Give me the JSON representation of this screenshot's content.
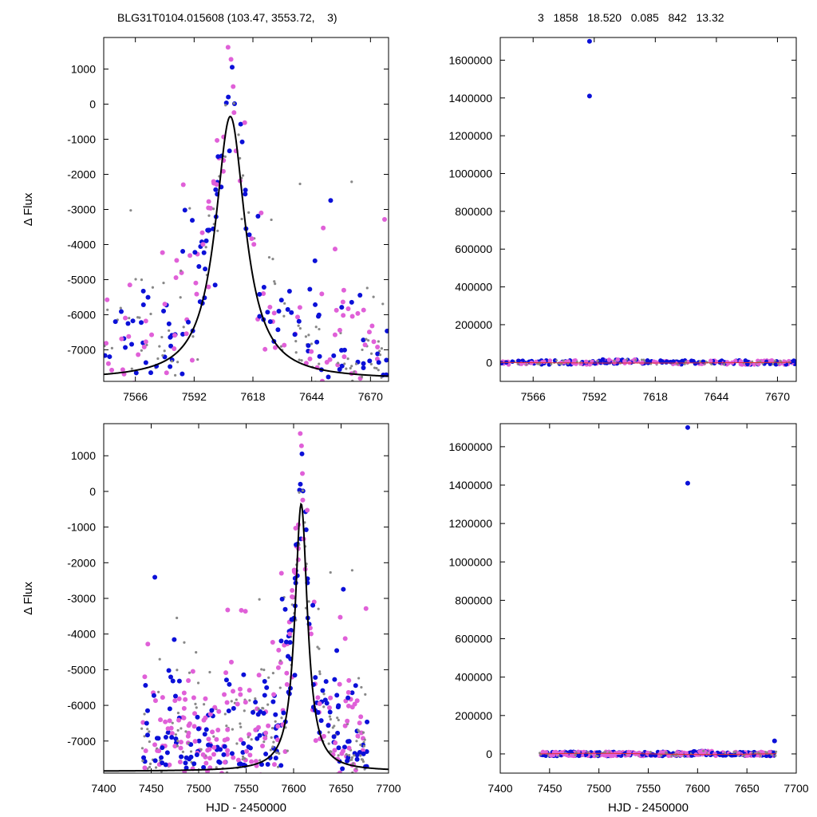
{
  "header": {
    "left_title": "BLG31T0104.015608 (103.47, 3553.72,    3)",
    "right_title": "3   1858   18.520   0.085   842   13.32"
  },
  "colors": {
    "blue": "#0b10d8",
    "pink": "#e060d8",
    "gray": "#888888",
    "model": "#000000",
    "red": "#e03030"
  },
  "chart_data": [
    {
      "type": "scatter",
      "panel": "top-left",
      "ylabel": "Δ Flux",
      "xlabel": "",
      "xlim": [
        7552,
        7678
      ],
      "ylim": [
        -7900,
        1900
      ],
      "xticks": [
        7566,
        7592,
        7618,
        7644,
        7670
      ],
      "yticks": [
        1000,
        0,
        -1000,
        -2000,
        -3000,
        -4000,
        -5000,
        -6000,
        -7000
      ],
      "model": {
        "t0": 7608,
        "tE": 8.0,
        "ymin": -7850,
        "ypeak": -350
      }
    },
    {
      "type": "scatter",
      "panel": "top-right",
      "ylabel": "",
      "xlabel": "",
      "xlim": [
        7552,
        7678
      ],
      "ylim": [
        -100000,
        1720000
      ],
      "xticks": [
        7566,
        7592,
        7618,
        7644,
        7670
      ],
      "yticks": [
        1600000,
        1400000,
        1200000,
        1000000,
        800000,
        600000,
        400000,
        200000,
        0
      ],
      "outliers": [
        {
          "x": 7590,
          "y": 1700000
        },
        {
          "x": 7590,
          "y": 1410000
        }
      ]
    },
    {
      "type": "scatter",
      "panel": "bottom-left",
      "ylabel": "Δ Flux",
      "xlabel": "HJD - 2450000",
      "xlim": [
        7400,
        7700
      ],
      "ylim": [
        -7900,
        1900
      ],
      "xticks": [
        7400,
        7450,
        7500,
        7550,
        7600,
        7650,
        7700
      ],
      "yticks": [
        1000,
        0,
        -1000,
        -2000,
        -3000,
        -4000,
        -5000,
        -6000,
        -7000
      ],
      "model": {
        "t0": 7608,
        "tE": 8.0,
        "ymin": -7850,
        "ypeak": -350
      }
    },
    {
      "type": "scatter",
      "panel": "bottom-right",
      "ylabel": "",
      "xlabel": "HJD - 2450000",
      "xlim": [
        7400,
        7700
      ],
      "ylim": [
        -100000,
        1720000
      ],
      "xticks": [
        7400,
        7450,
        7500,
        7550,
        7600,
        7650,
        7700
      ],
      "yticks": [
        1600000,
        1400000,
        1200000,
        1000000,
        800000,
        600000,
        400000,
        200000,
        0
      ],
      "outliers": [
        {
          "x": 7590,
          "y": 1700000
        },
        {
          "x": 7590,
          "y": 1410000
        },
        {
          "x": 7678,
          "y": 68000
        }
      ]
    }
  ]
}
